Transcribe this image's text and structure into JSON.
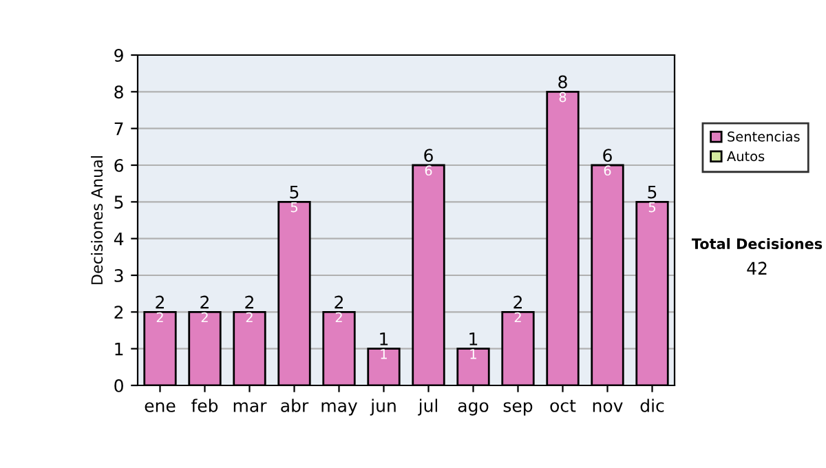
{
  "chart_data": {
    "type": "bar",
    "ylabel": "Decisiones Anual",
    "categories": [
      "ene",
      "feb",
      "mar",
      "abr",
      "may",
      "jun",
      "jul",
      "ago",
      "sep",
      "oct",
      "nov",
      "dic"
    ],
    "series": [
      {
        "name": "Sentencias",
        "color": "#e07fbf",
        "values": [
          2,
          2,
          2,
          5,
          2,
          1,
          6,
          1,
          2,
          8,
          6,
          5
        ],
        "value_labels": [
          "2",
          "2",
          "2",
          "5",
          "2",
          "1",
          "6",
          "1",
          "2",
          "8",
          "6",
          "5"
        ]
      },
      {
        "name": "Autos",
        "color": "#d4eba0",
        "values": [
          0,
          0,
          0,
          0,
          0,
          0,
          0,
          0,
          0,
          0,
          0,
          0
        ]
      }
    ],
    "stacked": true,
    "totals": [
      "2",
      "2",
      "2",
      "5",
      "2",
      "1",
      "6",
      "1",
      "2",
      "8",
      "6",
      "5"
    ],
    "ylim": [
      0,
      9
    ],
    "yticks": [
      0,
      1,
      2,
      3,
      4,
      5,
      6,
      7,
      8,
      9
    ],
    "grid": "y",
    "legend": "right",
    "annotations": [
      "Total Decisiones",
      "42"
    ]
  }
}
